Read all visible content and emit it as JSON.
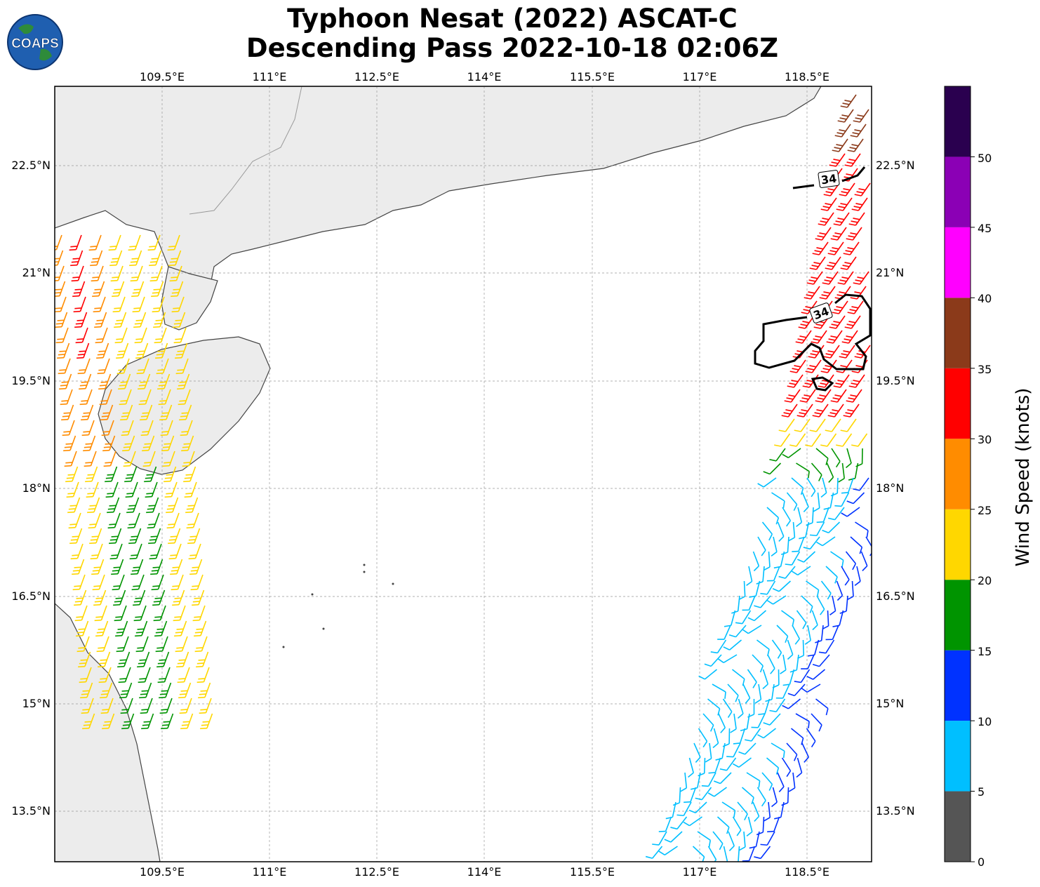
{
  "title": {
    "line1": "Typhoon Nesat (2022) ASCAT-C",
    "line2": "Descending Pass 2022-10-18 02:06Z"
  },
  "logo": {
    "text": "COAPS",
    "icon": "globe-icon"
  },
  "map": {
    "lon_ticks": [
      "109.5°E",
      "111°E",
      "112.5°E",
      "114°E",
      "115.5°E",
      "117°E",
      "118.5°E"
    ],
    "lat_ticks": [
      "22.5°N",
      "21°N",
      "19.5°N",
      "18°N",
      "16.5°N",
      "15°N",
      "13.5°N"
    ],
    "lon_range": [
      108,
      119.4
    ],
    "lat_range": [
      12.7,
      23.6
    ],
    "contour_labels": [
      "34",
      "34"
    ]
  },
  "colorbar": {
    "label": "Wind Speed (knots)",
    "ticks": [
      "0",
      "5",
      "10",
      "15",
      "20",
      "25",
      "30",
      "35",
      "40",
      "45",
      "50"
    ],
    "colors": [
      "#555555",
      "#00bfff",
      "#0032ff",
      "#009400",
      "#ffd700",
      "#ff8c00",
      "#ff0000",
      "#8b3a1a",
      "#ff00ff",
      "#8b00b5",
      "#2a004f"
    ]
  }
}
